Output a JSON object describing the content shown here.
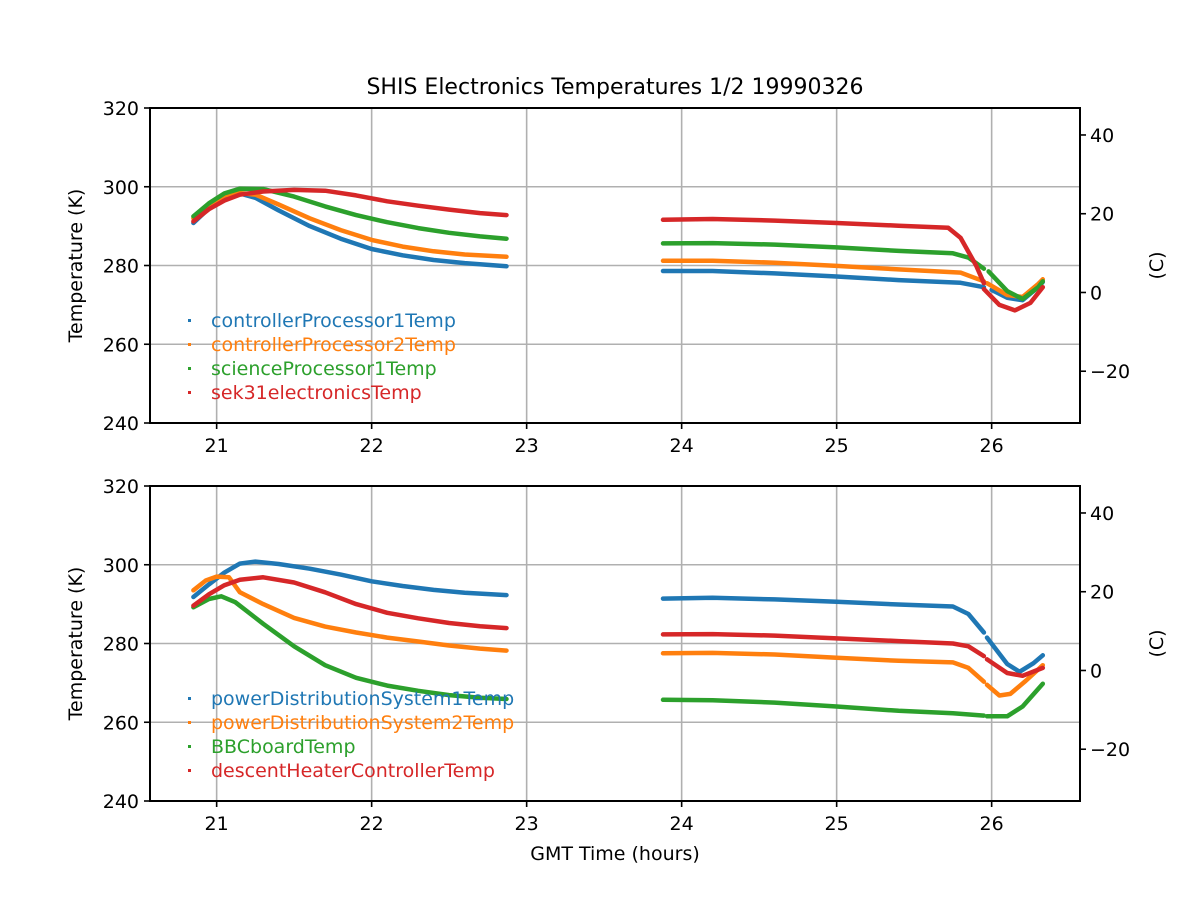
{
  "chart_data": [
    {
      "type": "scatter",
      "title": "SHIS Electronics Temperatures 1/2 19990326",
      "xlabel": "",
      "ylabel": "Temperature (K)",
      "ylabel_right": "(C)",
      "xlim": [
        20.57,
        26.57
      ],
      "ylim": [
        240,
        320
      ],
      "xticks": [
        21,
        22,
        23,
        24,
        25,
        26
      ],
      "yticks": [
        240,
        260,
        280,
        300,
        320
      ],
      "yticks_right": [
        -20,
        0,
        20,
        40
      ],
      "grid": true,
      "legend_position": "lower-left",
      "series": [
        {
          "name": "controllerProcessor1Temp",
          "color": "#1f77b4",
          "segments": [
            [
              [
                20.85,
                290.8
              ],
              [
                20.95,
                294.5
              ],
              [
                21.05,
                297.2
              ],
              [
                21.15,
                298.3
              ],
              [
                21.25,
                297.2
              ],
              [
                21.4,
                294.0
              ],
              [
                21.6,
                290.0
              ],
              [
                21.8,
                286.8
              ],
              [
                22.0,
                284.2
              ],
              [
                22.2,
                282.6
              ],
              [
                22.4,
                281.4
              ],
              [
                22.6,
                280.6
              ],
              [
                22.87,
                279.8
              ]
            ],
            [
              [
                23.88,
                278.6
              ],
              [
                24.2,
                278.6
              ],
              [
                24.6,
                278.0
              ],
              [
                25.0,
                277.2
              ],
              [
                25.4,
                276.3
              ],
              [
                25.8,
                275.6
              ],
              [
                25.95,
                274.5
              ]
            ],
            [
              [
                26.0,
                273.8
              ],
              [
                26.1,
                271.8
              ],
              [
                26.2,
                271.2
              ],
              [
                26.3,
                274.5
              ],
              [
                26.33,
                275.8
              ]
            ]
          ]
        },
        {
          "name": "controllerProcessor2Temp",
          "color": "#ff7f0e",
          "segments": [
            [
              [
                20.85,
                292.0
              ],
              [
                20.95,
                295.3
              ],
              [
                21.05,
                297.8
              ],
              [
                21.12,
                298.5
              ],
              [
                21.25,
                298.0
              ],
              [
                21.4,
                295.5
              ],
              [
                21.6,
                292.0
              ],
              [
                21.8,
                289.0
              ],
              [
                22.0,
                286.5
              ],
              [
                22.2,
                284.8
              ],
              [
                22.4,
                283.6
              ],
              [
                22.6,
                282.8
              ],
              [
                22.87,
                282.2
              ]
            ],
            [
              [
                23.88,
                281.2
              ],
              [
                24.2,
                281.2
              ],
              [
                24.6,
                280.7
              ],
              [
                25.0,
                279.9
              ],
              [
                25.4,
                279.0
              ],
              [
                25.8,
                278.2
              ],
              [
                25.95,
                276.0
              ]
            ],
            [
              [
                25.97,
                275.5
              ],
              [
                26.1,
                272.5
              ],
              [
                26.2,
                272.0
              ],
              [
                26.3,
                275.3
              ],
              [
                26.33,
                276.5
              ]
            ]
          ]
        },
        {
          "name": "scienceProcessor1Temp",
          "color": "#2ca02c",
          "segments": [
            [
              [
                20.85,
                292.5
              ],
              [
                20.95,
                295.8
              ],
              [
                21.05,
                298.3
              ],
              [
                21.15,
                299.5
              ],
              [
                21.3,
                299.4
              ],
              [
                21.5,
                297.5
              ],
              [
                21.7,
                295.0
              ],
              [
                21.9,
                292.8
              ],
              [
                22.1,
                291.0
              ],
              [
                22.3,
                289.5
              ],
              [
                22.5,
                288.3
              ],
              [
                22.7,
                287.4
              ],
              [
                22.87,
                286.8
              ]
            ],
            [
              [
                23.88,
                285.6
              ],
              [
                24.2,
                285.7
              ],
              [
                24.6,
                285.3
              ],
              [
                25.0,
                284.6
              ],
              [
                25.4,
                283.7
              ],
              [
                25.75,
                283.1
              ],
              [
                25.85,
                282.0
              ],
              [
                25.95,
                279.2
              ]
            ],
            [
              [
                25.98,
                278.5
              ],
              [
                26.1,
                273.5
              ],
              [
                26.2,
                271.5
              ],
              [
                26.3,
                274.5
              ],
              [
                26.33,
                276.0
              ]
            ]
          ]
        },
        {
          "name": "sek31electronicsTemp",
          "color": "#d62728",
          "segments": [
            [
              [
                20.85,
                291.2
              ],
              [
                20.95,
                294.3
              ],
              [
                21.05,
                296.5
              ],
              [
                21.15,
                298.0
              ],
              [
                21.3,
                298.8
              ],
              [
                21.5,
                299.2
              ],
              [
                21.7,
                299.0
              ],
              [
                21.9,
                297.8
              ],
              [
                22.1,
                296.3
              ],
              [
                22.3,
                295.2
              ],
              [
                22.5,
                294.2
              ],
              [
                22.7,
                293.3
              ],
              [
                22.87,
                292.8
              ]
            ],
            [
              [
                23.88,
                291.6
              ],
              [
                24.2,
                291.8
              ],
              [
                24.6,
                291.4
              ],
              [
                25.0,
                290.8
              ],
              [
                25.4,
                290.1
              ],
              [
                25.72,
                289.6
              ],
              [
                25.8,
                287.0
              ],
              [
                25.9,
                280.0
              ],
              [
                25.95,
                275.5
              ]
            ],
            [
              [
                25.95,
                274.0
              ],
              [
                26.05,
                270.0
              ],
              [
                26.15,
                268.6
              ],
              [
                26.25,
                270.5
              ],
              [
                26.33,
                274.5
              ]
            ]
          ]
        }
      ]
    },
    {
      "type": "scatter",
      "title": "",
      "xlabel": "GMT Time (hours)",
      "ylabel": "Temperature (K)",
      "ylabel_right": "(C)",
      "xlim": [
        20.57,
        26.57
      ],
      "ylim": [
        240,
        320
      ],
      "xticks": [
        21,
        22,
        23,
        24,
        25,
        26
      ],
      "yticks": [
        240,
        260,
        280,
        300,
        320
      ],
      "yticks_right": [
        -20,
        0,
        20,
        40
      ],
      "grid": true,
      "legend_position": "lower-left",
      "series": [
        {
          "name": "powerDistributionSystem1Temp",
          "color": "#1f77b4",
          "segments": [
            [
              [
                20.85,
                291.8
              ],
              [
                20.95,
                295.0
              ],
              [
                21.05,
                298.0
              ],
              [
                21.15,
                300.3
              ],
              [
                21.25,
                300.8
              ],
              [
                21.4,
                300.2
              ],
              [
                21.6,
                299.0
              ],
              [
                21.8,
                297.5
              ],
              [
                22.0,
                295.8
              ],
              [
                22.2,
                294.6
              ],
              [
                22.4,
                293.6
              ],
              [
                22.6,
                292.9
              ],
              [
                22.87,
                292.3
              ]
            ],
            [
              [
                23.88,
                291.4
              ],
              [
                24.2,
                291.6
              ],
              [
                24.6,
                291.2
              ],
              [
                25.0,
                290.6
              ],
              [
                25.4,
                289.9
              ],
              [
                25.75,
                289.4
              ],
              [
                25.85,
                287.5
              ],
              [
                25.95,
                282.8
              ]
            ],
            [
              [
                25.97,
                281.5
              ],
              [
                26.1,
                274.8
              ],
              [
                26.18,
                272.8
              ],
              [
                26.27,
                275.0
              ],
              [
                26.33,
                277.0
              ]
            ]
          ]
        },
        {
          "name": "powerDistributionSystem2Temp",
          "color": "#ff7f0e",
          "segments": [
            [
              [
                20.85,
                293.5
              ],
              [
                20.93,
                296.0
              ],
              [
                21.0,
                297.0
              ],
              [
                21.08,
                296.8
              ],
              [
                21.15,
                293.0
              ],
              [
                21.3,
                290.0
              ],
              [
                21.5,
                286.5
              ],
              [
                21.7,
                284.3
              ],
              [
                21.9,
                282.8
              ],
              [
                22.1,
                281.5
              ],
              [
                22.3,
                280.5
              ],
              [
                22.5,
                279.5
              ],
              [
                22.7,
                278.7
              ],
              [
                22.87,
                278.2
              ]
            ],
            [
              [
                23.88,
                277.5
              ],
              [
                24.2,
                277.6
              ],
              [
                24.6,
                277.2
              ],
              [
                25.0,
                276.4
              ],
              [
                25.4,
                275.6
              ],
              [
                25.75,
                275.2
              ],
              [
                25.85,
                273.8
              ],
              [
                25.95,
                270.3
              ]
            ],
            [
              [
                25.97,
                269.5
              ],
              [
                26.05,
                266.8
              ],
              [
                26.12,
                267.2
              ],
              [
                26.22,
                270.5
              ],
              [
                26.33,
                274.5
              ]
            ]
          ]
        },
        {
          "name": "BBCboardTemp",
          "color": "#2ca02c",
          "segments": [
            [
              [
                20.85,
                289.2
              ],
              [
                20.95,
                291.3
              ],
              [
                21.03,
                292.0
              ],
              [
                21.12,
                290.5
              ],
              [
                21.3,
                285.0
              ],
              [
                21.5,
                279.3
              ],
              [
                21.7,
                274.5
              ],
              [
                21.9,
                271.3
              ],
              [
                22.1,
                269.3
              ],
              [
                22.3,
                268.0
              ],
              [
                22.5,
                266.9
              ],
              [
                22.7,
                266.2
              ],
              [
                22.87,
                265.9
              ]
            ],
            [
              [
                23.88,
                265.7
              ],
              [
                24.2,
                265.6
              ],
              [
                24.6,
                265.0
              ],
              [
                25.0,
                264.0
              ],
              [
                25.4,
                262.9
              ],
              [
                25.75,
                262.3
              ],
              [
                25.95,
                261.7
              ]
            ],
            [
              [
                25.97,
                261.5
              ],
              [
                26.1,
                261.5
              ],
              [
                26.2,
                264.0
              ],
              [
                26.33,
                269.8
              ]
            ]
          ]
        },
        {
          "name": "descentHeaterControllerTemp",
          "color": "#d62728",
          "segments": [
            [
              [
                20.85,
                289.6
              ],
              [
                20.95,
                292.5
              ],
              [
                21.05,
                294.8
              ],
              [
                21.15,
                296.2
              ],
              [
                21.3,
                296.8
              ],
              [
                21.5,
                295.5
              ],
              [
                21.7,
                293.0
              ],
              [
                21.9,
                290.0
              ],
              [
                22.1,
                287.8
              ],
              [
                22.3,
                286.4
              ],
              [
                22.5,
                285.2
              ],
              [
                22.7,
                284.4
              ],
              [
                22.87,
                283.9
              ]
            ],
            [
              [
                23.88,
                282.3
              ],
              [
                24.2,
                282.4
              ],
              [
                24.6,
                282.0
              ],
              [
                25.0,
                281.3
              ],
              [
                25.4,
                280.6
              ],
              [
                25.75,
                280.0
              ],
              [
                25.85,
                279.3
              ],
              [
                25.95,
                276.8
              ]
            ],
            [
              [
                25.97,
                276.0
              ],
              [
                26.1,
                272.5
              ],
              [
                26.2,
                271.8
              ],
              [
                26.33,
                273.8
              ]
            ]
          ]
        }
      ]
    }
  ]
}
